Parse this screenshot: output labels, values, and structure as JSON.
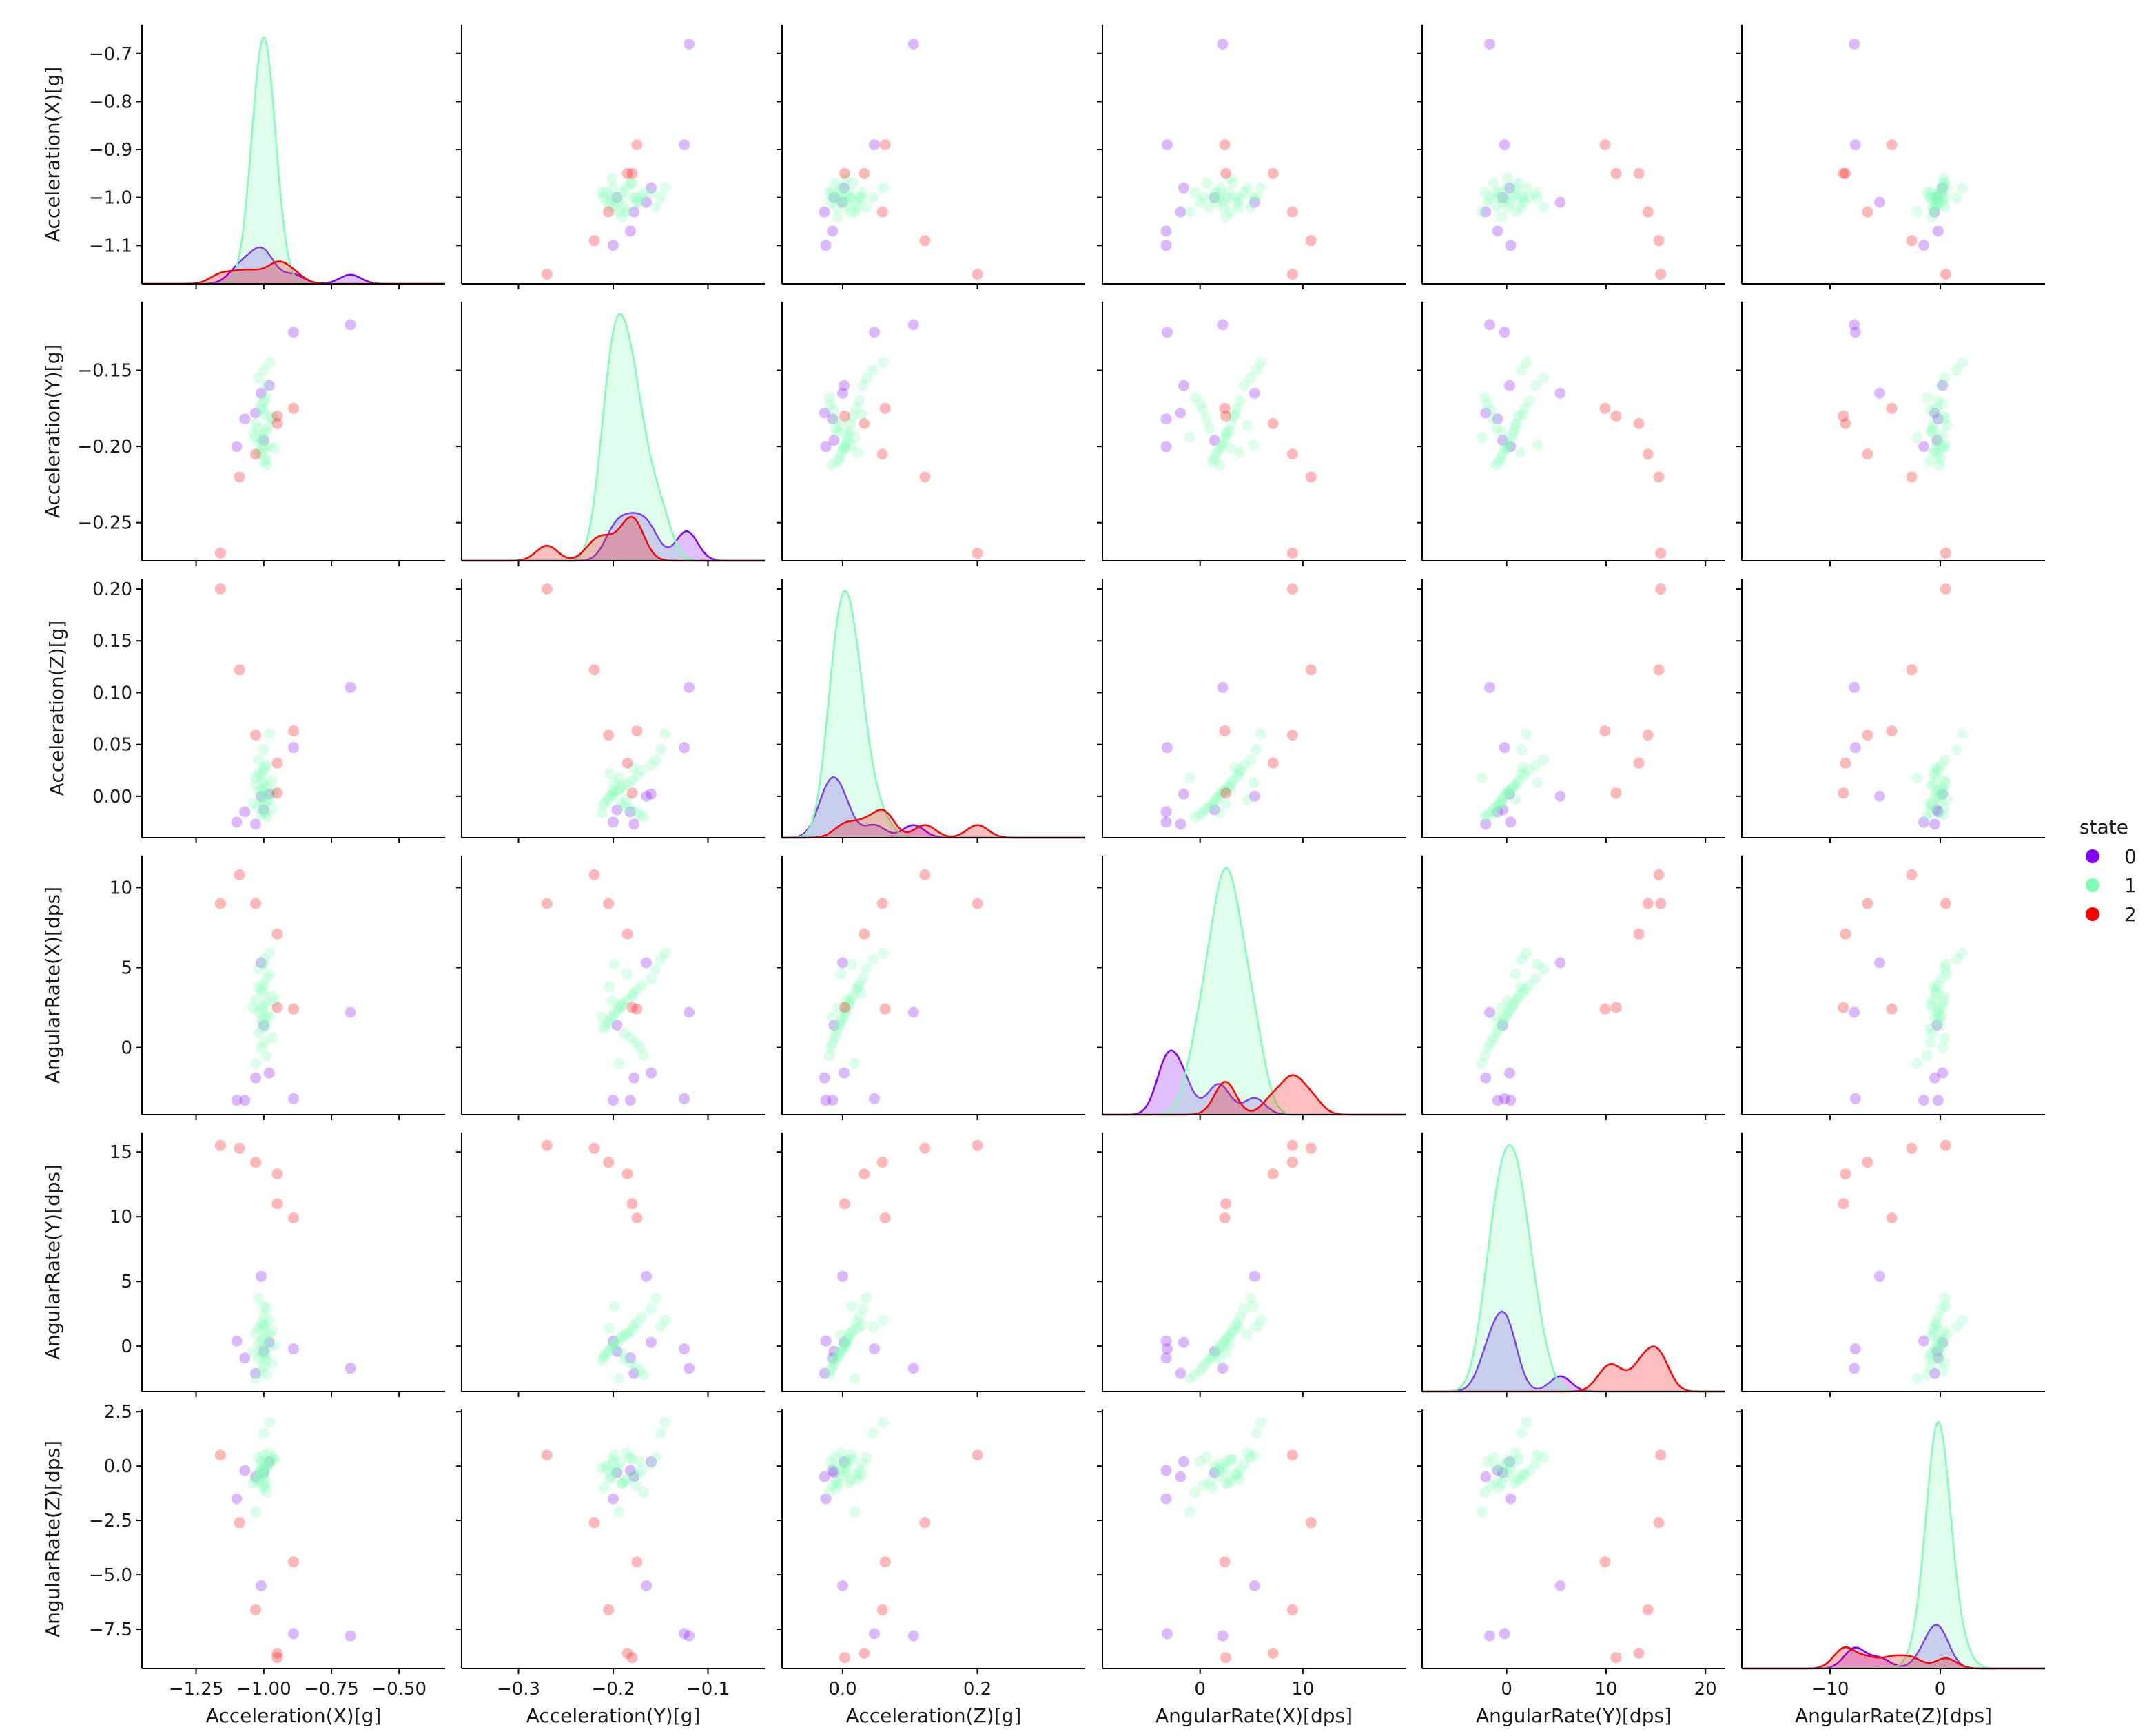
{
  "chart_data": {
    "type": "scatter",
    "variables": [
      "Acceleration(X)[g]",
      "Acceleration(Y)[g]",
      "Acceleration(Z)[g]",
      "AngularRate(X)[dps]",
      "AngularRate(Y)[dps]",
      "AngularRate(Z)[dps]"
    ],
    "layout": "pairplot 6x6, KDE on diagonal, scatter off-diagonal",
    "axis_ranges": [
      [
        -1.45,
        -0.33
      ],
      [
        -0.36,
        -0.04
      ],
      [
        -0.09,
        0.36
      ],
      [
        -9.5,
        20
      ],
      [
        -8.5,
        22
      ],
      [
        -18,
        9.5
      ]
    ],
    "row_ranges": [
      [
        -1.18,
        -0.64
      ],
      [
        -0.275,
        -0.105
      ],
      [
        -0.04,
        0.21
      ],
      [
        -4.2,
        12
      ],
      [
        -3.5,
        16.5
      ],
      [
        -9.3,
        2.6
      ]
    ],
    "ticks": [
      {
        "values": [
          -1.25,
          -1.0,
          -0.75,
          -0.5
        ],
        "labels": [
          "−1.25",
          "−1.00",
          "−0.75",
          "−0.50"
        ]
      },
      {
        "values": [
          -0.3,
          -0.2,
          -0.1
        ],
        "labels": [
          "−0.3",
          "−0.2",
          "−0.1"
        ]
      },
      {
        "values": [
          0.0,
          0.2
        ],
        "labels": [
          "0.0",
          "0.2"
        ]
      },
      {
        "values": [
          0,
          10
        ],
        "labels": [
          "0",
          "10"
        ]
      },
      {
        "values": [
          0,
          10,
          20
        ],
        "labels": [
          "0",
          "10",
          "20"
        ]
      },
      {
        "values": [
          -10,
          0
        ],
        "labels": [
          "−10",
          "0"
        ]
      }
    ],
    "row_ticks": [
      {
        "values": [
          -1.1,
          -1.0,
          -0.9,
          -0.8,
          -0.7
        ],
        "labels": [
          "−1.1",
          "−1.0",
          "−0.9",
          "−0.8",
          "−0.7"
        ]
      },
      {
        "values": [
          -0.25,
          -0.2,
          -0.15
        ],
        "labels": [
          "−0.25",
          "−0.20",
          "−0.15"
        ]
      },
      {
        "values": [
          0.0,
          0.05,
          0.1,
          0.15,
          0.2
        ],
        "labels": [
          "0.00",
          "0.05",
          "0.10",
          "0.15",
          "0.20"
        ]
      },
      {
        "values": [
          0,
          5,
          10
        ],
        "labels": [
          "0",
          "5",
          "10"
        ]
      },
      {
        "values": [
          0,
          5,
          10,
          15
        ],
        "labels": [
          "0",
          "5",
          "10",
          "15"
        ]
      },
      {
        "values": [
          -7.5,
          -5.0,
          -2.5,
          0.0,
          2.5
        ],
        "labels": [
          "−7.5",
          "−5.0",
          "−2.5",
          "0.0",
          "2.5"
        ]
      }
    ],
    "legend": {
      "title": "state",
      "placement": "right",
      "entries": [
        {
          "label": "0",
          "color": "#8000ff"
        },
        {
          "label": "1",
          "color": "#80ffb4"
        },
        {
          "label": "2",
          "color": "#ff0000"
        }
      ]
    },
    "series": [
      {
        "name": "0",
        "color": "#8000ff",
        "points": [
          [
            -0.68,
            -0.12,
            0.105,
            2.2,
            -1.7,
            -7.8
          ],
          [
            -0.89,
            -0.125,
            0.047,
            -3.2,
            -0.2,
            -7.7
          ],
          [
            -1.1,
            -0.2,
            -0.025,
            -3.3,
            0.4,
            -1.5
          ],
          [
            -1.07,
            -0.182,
            -0.015,
            -3.3,
            -0.9,
            -0.2
          ],
          [
            -1.01,
            -0.165,
            0.0,
            5.3,
            5.4,
            -5.5
          ],
          [
            -0.98,
            -0.16,
            0.002,
            -1.6,
            0.3,
            0.2
          ],
          [
            -1.03,
            -0.178,
            -0.027,
            -1.9,
            -2.1,
            -0.5
          ],
          [
            -1.0,
            -0.196,
            -0.013,
            1.4,
            -0.4,
            -0.3
          ]
        ]
      },
      {
        "name": "1",
        "color": "#80ffb4",
        "points": [
          [
            -0.98,
            -0.145,
            0.06,
            5.9,
            2.0,
            2.0
          ],
          [
            -1.0,
            -0.15,
            0.045,
            5.5,
            1.5,
            1.5
          ],
          [
            -1.02,
            -0.155,
            0.035,
            4.9,
            3.7,
            0.4
          ],
          [
            -0.99,
            -0.16,
            0.03,
            4.3,
            2.9,
            0.1
          ],
          [
            -1.0,
            -0.17,
            0.025,
            3.9,
            2.3,
            -0.2
          ],
          [
            -1.01,
            -0.175,
            0.02,
            3.6,
            1.8,
            -0.4
          ],
          [
            -0.97,
            -0.18,
            0.015,
            3.2,
            1.2,
            0.3
          ],
          [
            -1.03,
            -0.185,
            0.012,
            3.0,
            1.0,
            -0.6
          ],
          [
            -0.99,
            -0.19,
            0.01,
            2.8,
            0.8,
            -0.8
          ],
          [
            -1.0,
            -0.192,
            0.008,
            2.6,
            0.6,
            0.2
          ],
          [
            -1.01,
            -0.195,
            0.006,
            2.4,
            0.4,
            -0.1
          ],
          [
            -1.02,
            -0.198,
            0.004,
            2.2,
            0.2,
            -0.3
          ],
          [
            -0.98,
            -0.2,
            0.002,
            2.0,
            0.0,
            0.1
          ],
          [
            -1.0,
            -0.202,
            0.0,
            1.8,
            -0.2,
            -0.5
          ],
          [
            -1.01,
            -0.205,
            -0.002,
            1.6,
            -0.4,
            -0.2
          ],
          [
            -0.99,
            -0.208,
            -0.005,
            1.4,
            -0.6,
            0.0
          ],
          [
            -1.0,
            -0.21,
            -0.008,
            1.2,
            -0.8,
            -1.0
          ],
          [
            -1.02,
            -0.188,
            -0.01,
            0.9,
            -1.0,
            -0.7
          ],
          [
            -0.97,
            -0.182,
            -0.012,
            0.6,
            -1.3,
            0.4
          ],
          [
            -1.0,
            -0.176,
            -0.015,
            0.3,
            -1.6,
            -0.9
          ],
          [
            -1.01,
            -0.172,
            -0.018,
            0.0,
            -1.9,
            0.2
          ],
          [
            -0.99,
            -0.168,
            -0.02,
            -0.5,
            -2.2,
            -1.2
          ],
          [
            -1.03,
            -0.194,
            0.018,
            -1.0,
            -2.5,
            -2.1
          ],
          [
            -0.98,
            -0.186,
            -0.003,
            4.6,
            0.9,
            0.6
          ],
          [
            -1.0,
            -0.179,
            0.028,
            3.4,
            1.6,
            -0.4
          ],
          [
            -0.96,
            -0.201,
            0.005,
            2.9,
            0.1,
            0.3
          ],
          [
            -1.04,
            -0.191,
            -0.007,
            2.5,
            -0.5,
            -0.8
          ],
          [
            -1.0,
            -0.199,
            0.013,
            5.2,
            3.1,
            0.5
          ],
          [
            -0.99,
            -0.212,
            -0.016,
            1.9,
            -1.1,
            -0.1
          ],
          [
            -1.02,
            -0.204,
            0.022,
            3.8,
            1.4,
            -0.6
          ]
        ]
      },
      {
        "name": "2",
        "color": "#ff0000",
        "points": [
          [
            -1.16,
            -0.27,
            0.2,
            9.0,
            15.5,
            0.5
          ],
          [
            -0.89,
            -0.175,
            0.063,
            2.4,
            9.9,
            -4.4
          ],
          [
            -1.09,
            -0.22,
            0.122,
            10.8,
            15.3,
            -2.6
          ],
          [
            -0.95,
            -0.18,
            0.003,
            2.5,
            11.0,
            -8.8
          ],
          [
            -1.03,
            -0.205,
            0.059,
            9.0,
            14.2,
            -6.6
          ],
          [
            -0.95,
            -0.185,
            0.032,
            7.1,
            13.3,
            -8.6
          ]
        ]
      }
    ]
  }
}
